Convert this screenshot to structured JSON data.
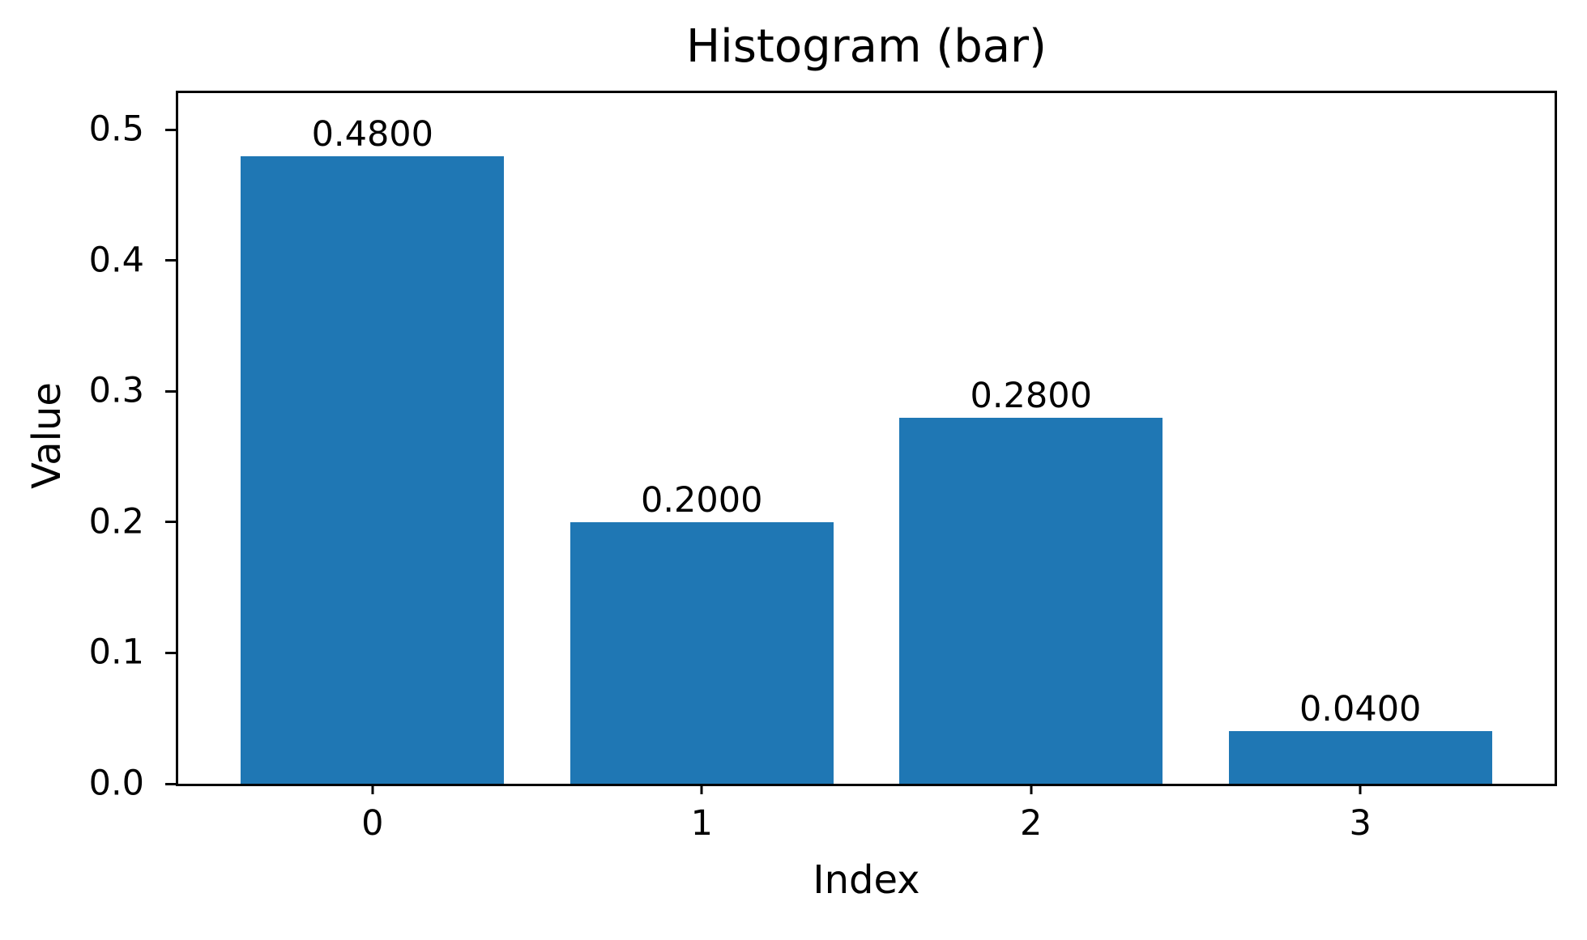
{
  "chart_data": {
    "type": "bar",
    "title": "Histogram (bar)",
    "xlabel": "Index",
    "ylabel": "Value",
    "categories": [
      "0",
      "1",
      "2",
      "3"
    ],
    "values": [
      0.48,
      0.2,
      0.28,
      0.04
    ],
    "bar_value_labels": [
      "0.4800",
      "0.2000",
      "0.2800",
      "0.0400"
    ],
    "bar_color": "#1f77b4",
    "bar_width": 0.8,
    "x_positions": [
      0,
      1,
      2,
      3
    ],
    "xlim": [
      -0.59,
      3.59
    ],
    "ylim": [
      0,
      0.528
    ],
    "yticks": [
      0.0,
      0.1,
      0.2,
      0.3,
      0.4,
      0.5
    ],
    "ytick_labels": [
      "0.0",
      "0.1",
      "0.2",
      "0.3",
      "0.4",
      "0.5"
    ],
    "grid": false,
    "legend": null,
    "text_color": "#000000",
    "spine_color": "#000000",
    "background_color": "#ffffff"
  }
}
